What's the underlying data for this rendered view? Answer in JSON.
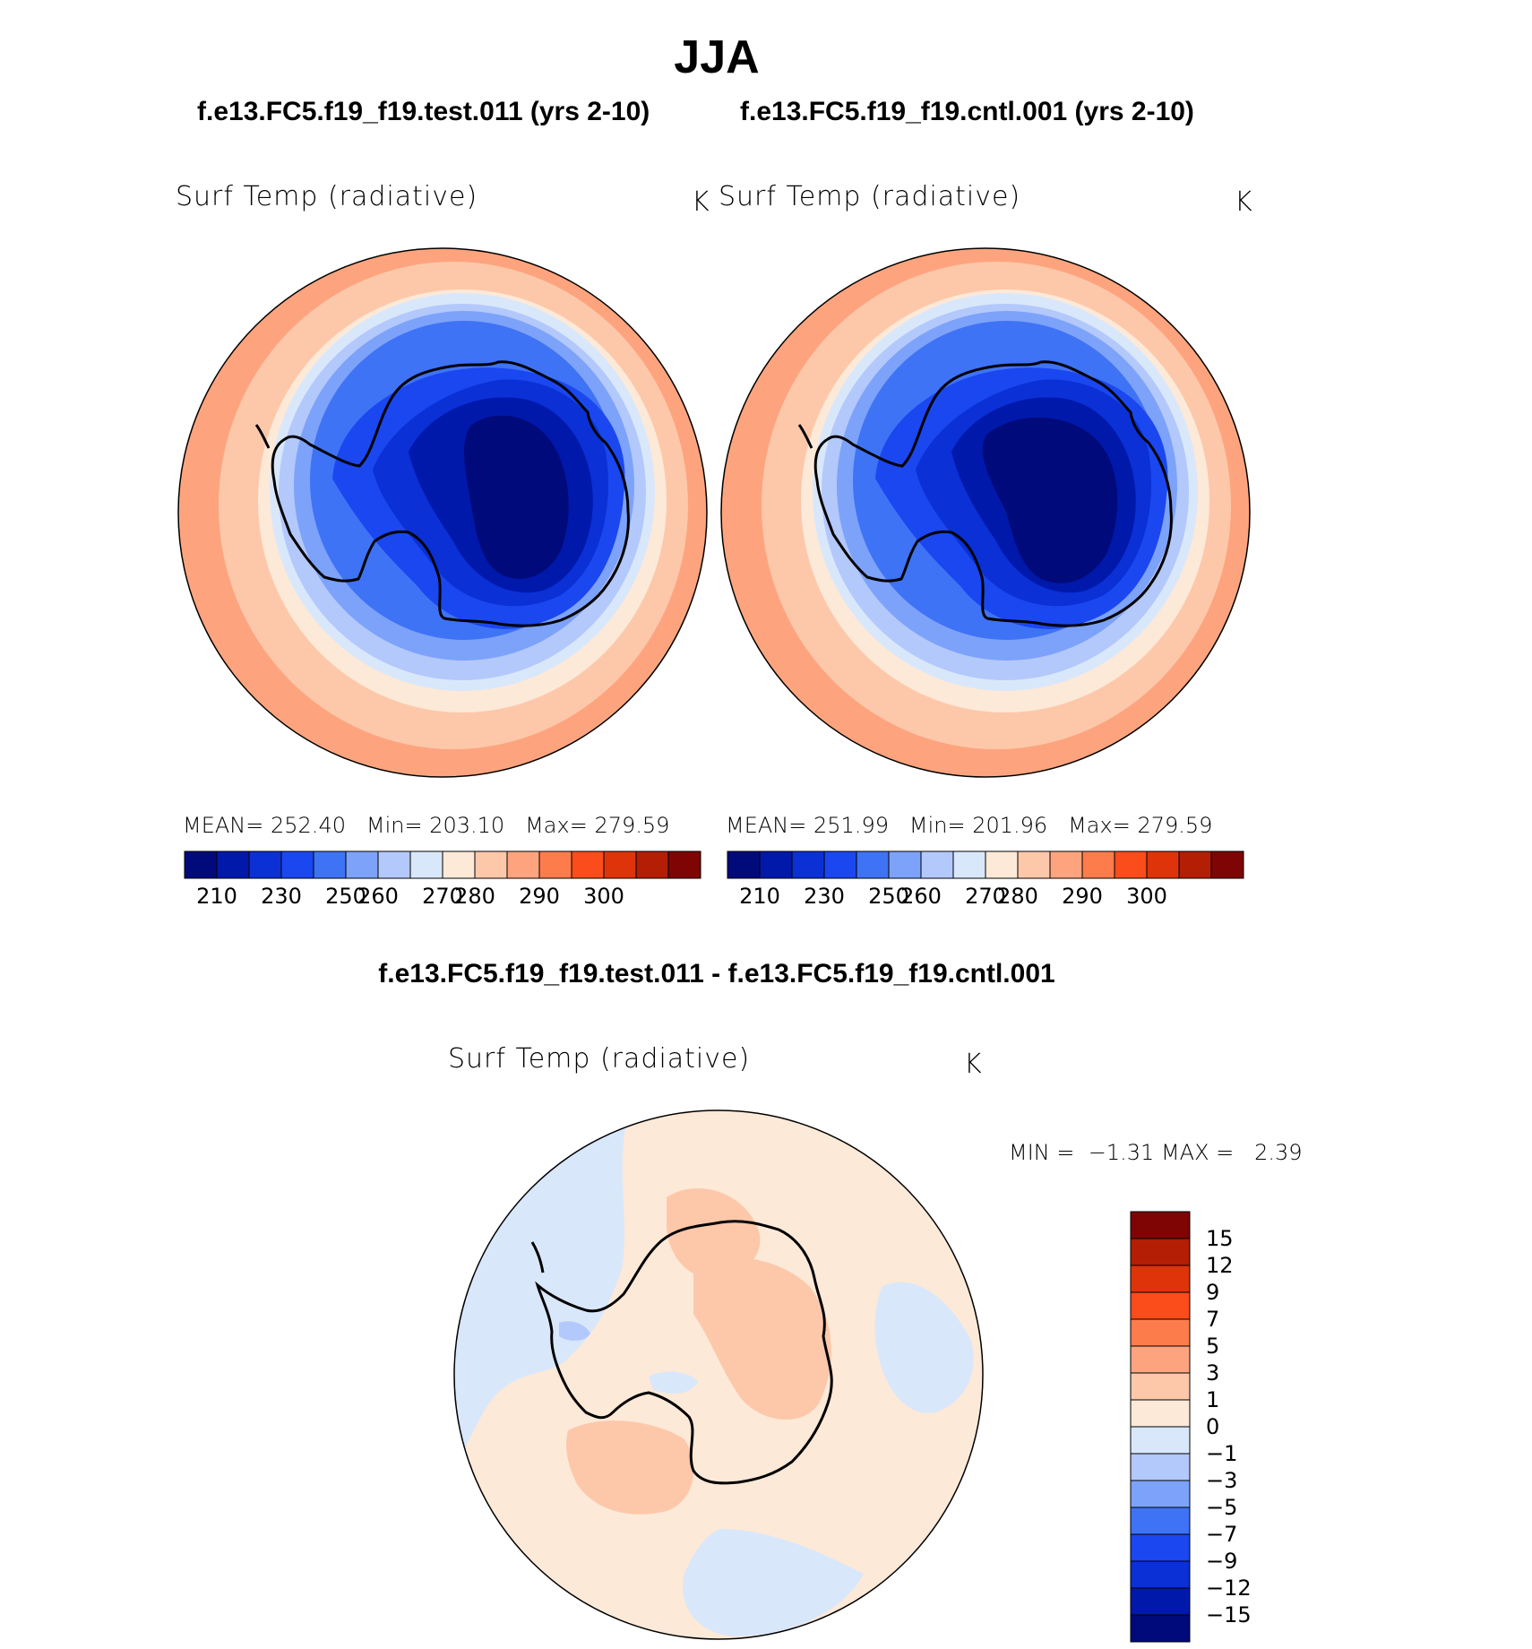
{
  "title": "JJA",
  "case_titles": {
    "test": "f.e13.FC5.f19_f19.test.011 (yrs 2-10)",
    "control": "f.e13.FC5.f19_f19.cntl.001 (yrs 2-10)",
    "difference": "f.e13.FC5.f19_f19.test.011 - f.e13.FC5.f19_f19.cntl.001"
  },
  "panels": [
    {
      "variable": "Surf Temp (radiative)",
      "units": "K",
      "stats": {
        "mean_label": "MEAN=",
        "mean": "252.40",
        "min_label": "Min=",
        "min": "203.10",
        "max_label": "Max=",
        "max": "279.59"
      }
    },
    {
      "variable": "Surf Temp (radiative)",
      "units": "K",
      "stats": {
        "mean_label": "MEAN=",
        "mean": "251.99",
        "min_label": "Min=",
        "min": "201.96",
        "max_label": "Max=",
        "max": "279.59"
      }
    },
    {
      "variable": "Surf Temp (radiative)",
      "units": "K",
      "stats": {
        "min_label": "MIN =",
        "min": "−1.31",
        "max_label": "MAX =",
        "max": "2.39"
      }
    }
  ],
  "colorbar_abs": {
    "colors": [
      "#000a7a",
      "#0019ab",
      "#0a30d6",
      "#1a47f0",
      "#3f73f5",
      "#7da2fa",
      "#b3c8fb",
      "#d9e7fb",
      "#fde9d8",
      "#fdc8aa",
      "#fda47e",
      "#fd7c4c",
      "#fb4c1c",
      "#df340a",
      "#b31e05",
      "#7f0505"
    ],
    "ticks": [
      "210",
      "230",
      "250",
      "260",
      "270",
      "280",
      "290",
      "300"
    ]
  },
  "colorbar_diff": {
    "colors": [
      "#7f0505",
      "#b31e05",
      "#df340a",
      "#fb4c1c",
      "#fd7c4c",
      "#fda47e",
      "#fdc8aa",
      "#fde9d8",
      "#d9e7fb",
      "#b3c8fb",
      "#7da2fa",
      "#3f73f5",
      "#1a47f0",
      "#0a30d6",
      "#0019ab",
      "#000a7a"
    ],
    "ticks": [
      "15",
      "12",
      "9",
      "7",
      "5",
      "3",
      "1",
      "0",
      "−1",
      "−3",
      "−5",
      "−7",
      "−9",
      "−12",
      "−15"
    ]
  }
}
